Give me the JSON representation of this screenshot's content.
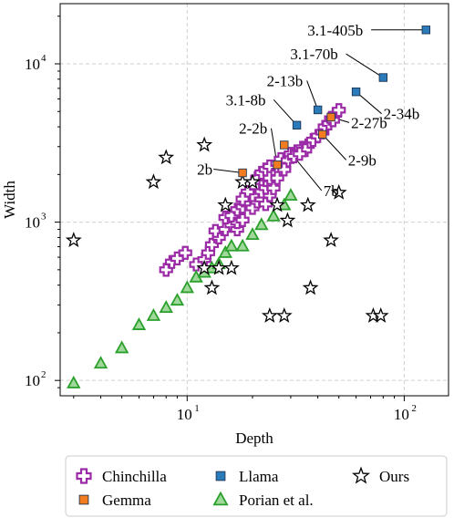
{
  "chart_data": {
    "type": "scatter",
    "title": "",
    "xlabel": "Depth",
    "ylabel": "Width",
    "xscale": "log",
    "yscale": "log",
    "xlim": [
      2.6,
      160
    ],
    "ylim": [
      80,
      24000
    ],
    "grid": true,
    "legend_position": "bottom",
    "xticks": [
      {
        "value": 10,
        "base": "10",
        "exp": "1"
      },
      {
        "value": 100,
        "base": "10",
        "exp": "2"
      }
    ],
    "yticks": [
      {
        "value": 100,
        "base": "10",
        "exp": "2"
      },
      {
        "value": 1000,
        "base": "10",
        "exp": "3"
      },
      {
        "value": 10000,
        "base": "10",
        "exp": "4"
      }
    ],
    "series": [
      {
        "name": "Chinchilla",
        "marker": "plus",
        "color": "#9b2aa6",
        "points": [
          [
            8,
            500
          ],
          [
            8.5,
            560
          ],
          [
            9,
            590
          ],
          [
            9.8,
            640
          ],
          [
            11,
            540
          ],
          [
            12,
            580
          ],
          [
            12.5,
            640
          ],
          [
            13,
            720
          ],
          [
            14,
            800
          ],
          [
            13.5,
            880
          ],
          [
            15,
            900
          ],
          [
            16,
            960
          ],
          [
            17,
            900
          ],
          [
            17,
            1000
          ],
          [
            18,
            1030
          ],
          [
            15,
            1070
          ],
          [
            16,
            1100
          ],
          [
            17,
            1200
          ],
          [
            18,
            1250
          ],
          [
            19,
            1300
          ],
          [
            20,
            1230
          ],
          [
            21,
            1350
          ],
          [
            22,
            1400
          ],
          [
            23,
            1300
          ],
          [
            24,
            1480
          ],
          [
            20,
            1480
          ],
          [
            22,
            1560
          ],
          [
            23,
            1650
          ],
          [
            24,
            1750
          ],
          [
            25,
            1640
          ],
          [
            21,
            1900
          ],
          [
            22,
            2050
          ],
          [
            23,
            2150
          ],
          [
            24,
            2250
          ],
          [
            26,
            2350
          ],
          [
            27,
            2500
          ],
          [
            28,
            2250
          ],
          [
            29,
            2450
          ],
          [
            30,
            2700
          ],
          [
            32,
            2800
          ],
          [
            34,
            2950
          ],
          [
            36,
            3050
          ],
          [
            38,
            3300
          ],
          [
            40,
            3500
          ],
          [
            42,
            3700
          ],
          [
            43,
            4000
          ],
          [
            45,
            4200
          ],
          [
            46,
            4500
          ],
          [
            48,
            4800
          ],
          [
            50,
            5100
          ],
          [
            24,
            1900
          ],
          [
            26,
            2050
          ],
          [
            28,
            2150
          ],
          [
            31,
            2600
          ],
          [
            35,
            2850
          ],
          [
            19,
            1550
          ],
          [
            18,
            1400
          ],
          [
            26,
            1900
          ],
          [
            33,
            2700
          ],
          [
            47,
            4400
          ]
        ]
      },
      {
        "name": "Gemma",
        "marker": "square",
        "color": "#f47c20",
        "points": [
          [
            18,
            2048
          ],
          [
            26,
            2304
          ],
          [
            28,
            3072
          ],
          [
            42,
            3584
          ],
          [
            46,
            4608
          ]
        ]
      },
      {
        "name": "Llama",
        "marker": "square",
        "color": "#2b7bba",
        "points": [
          [
            32,
            4096
          ],
          [
            40,
            5120
          ],
          [
            60,
            6656
          ],
          [
            80,
            8192
          ],
          [
            126,
            16384
          ]
        ]
      },
      {
        "name": "Porian et al.",
        "marker": "triangle",
        "color": "#2ca02c",
        "points": [
          [
            3,
            96
          ],
          [
            4,
            128
          ],
          [
            5,
            160
          ],
          [
            6,
            224
          ],
          [
            7,
            256
          ],
          [
            8,
            288
          ],
          [
            9,
            320
          ],
          [
            10,
            384
          ],
          [
            11,
            448
          ],
          [
            12,
            480
          ],
          [
            13,
            512
          ],
          [
            14,
            544
          ],
          [
            15,
            640
          ],
          [
            16,
            704
          ],
          [
            18,
            704
          ],
          [
            20,
            832
          ],
          [
            22,
            960
          ],
          [
            25,
            1088
          ],
          [
            28,
            1280
          ],
          [
            30,
            1472
          ]
        ]
      },
      {
        "name": "Ours",
        "marker": "star",
        "color": "#000000",
        "points": [
          [
            3,
            768
          ],
          [
            7,
            1792
          ],
          [
            8,
            2560
          ],
          [
            12,
            3072
          ],
          [
            12,
            512
          ],
          [
            13,
            384
          ],
          [
            14,
            512
          ],
          [
            15,
            1280
          ],
          [
            16,
            512
          ],
          [
            18,
            1792
          ],
          [
            20,
            1792
          ],
          [
            24,
            256
          ],
          [
            26,
            1280
          ],
          [
            28,
            256
          ],
          [
            29,
            1024
          ],
          [
            36,
            1280
          ],
          [
            37,
            384
          ],
          [
            46,
            768
          ],
          [
            50,
            1536
          ],
          [
            72,
            256
          ],
          [
            78,
            256
          ]
        ]
      }
    ],
    "annotations": [
      {
        "text": "3.1-405b",
        "x": 126,
        "y": 16384
      },
      {
        "text": "3.1-70b",
        "x": 80,
        "y": 8192
      },
      {
        "text": "2-13b",
        "x": 40,
        "y": 5120
      },
      {
        "text": "2-34b",
        "x": 60,
        "y": 6656
      },
      {
        "text": "3.1-8b",
        "x": 32,
        "y": 4096
      },
      {
        "text": "2-27b",
        "x": 46,
        "y": 4608
      },
      {
        "text": "2-2b",
        "x": 26,
        "y": 2304
      },
      {
        "text": "2-9b",
        "x": 42,
        "y": 3584
      },
      {
        "text": "2b",
        "x": 18,
        "y": 2048
      },
      {
        "text": "7b",
        "x": 28,
        "y": 3072
      }
    ]
  }
}
